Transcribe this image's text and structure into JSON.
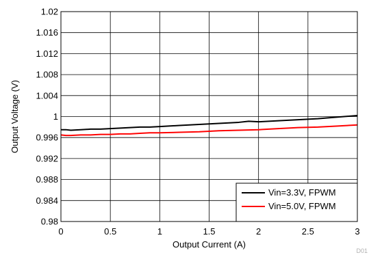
{
  "chart_data": {
    "type": "line",
    "xlabel": "Output Current (A)",
    "ylabel": "Output Voltage (V)",
    "xlim": [
      0,
      3
    ],
    "ylim": [
      0.98,
      1.02
    ],
    "x_ticks": [
      "0",
      "0.5",
      "1",
      "1.5",
      "2",
      "2.5",
      "3"
    ],
    "y_ticks": [
      "0.98",
      "0.984",
      "0.988",
      "0.992",
      "0.996",
      "1",
      "1.004",
      "1.008",
      "1.012",
      "1.016",
      "1.02"
    ],
    "grid": true,
    "legend_position": "bottom-right",
    "figure_id": "D01",
    "series": [
      {
        "name": "Vin=3.3V, FPWM",
        "color": "#000000",
        "x": [
          0,
          0.05,
          0.1,
          0.2,
          0.3,
          0.4,
          0.5,
          0.6,
          0.7,
          0.8,
          0.9,
          1.0,
          1.2,
          1.4,
          1.6,
          1.8,
          1.9,
          2.0,
          2.2,
          2.4,
          2.6,
          2.8,
          3.0
        ],
        "y": [
          0.9975,
          0.9975,
          0.9974,
          0.9975,
          0.9976,
          0.9976,
          0.9977,
          0.9978,
          0.9979,
          0.998,
          0.998,
          0.9981,
          0.9983,
          0.9985,
          0.9987,
          0.9989,
          0.9991,
          0.999,
          0.9992,
          0.9994,
          0.9996,
          0.9999,
          1.0002
        ]
      },
      {
        "name": "Vin=5.0V, FPWM",
        "color": "#ff0000",
        "x": [
          0,
          0.05,
          0.1,
          0.2,
          0.3,
          0.4,
          0.5,
          0.6,
          0.7,
          0.8,
          0.9,
          1.0,
          1.2,
          1.4,
          1.6,
          1.8,
          2.0,
          2.2,
          2.4,
          2.6,
          2.8,
          3.0
        ],
        "y": [
          0.9965,
          0.9964,
          0.9964,
          0.9965,
          0.9965,
          0.9966,
          0.9966,
          0.9967,
          0.9967,
          0.9968,
          0.9969,
          0.9969,
          0.997,
          0.9971,
          0.9973,
          0.9974,
          0.9975,
          0.9977,
          0.9979,
          0.998,
          0.9982,
          0.9984
        ]
      }
    ]
  }
}
